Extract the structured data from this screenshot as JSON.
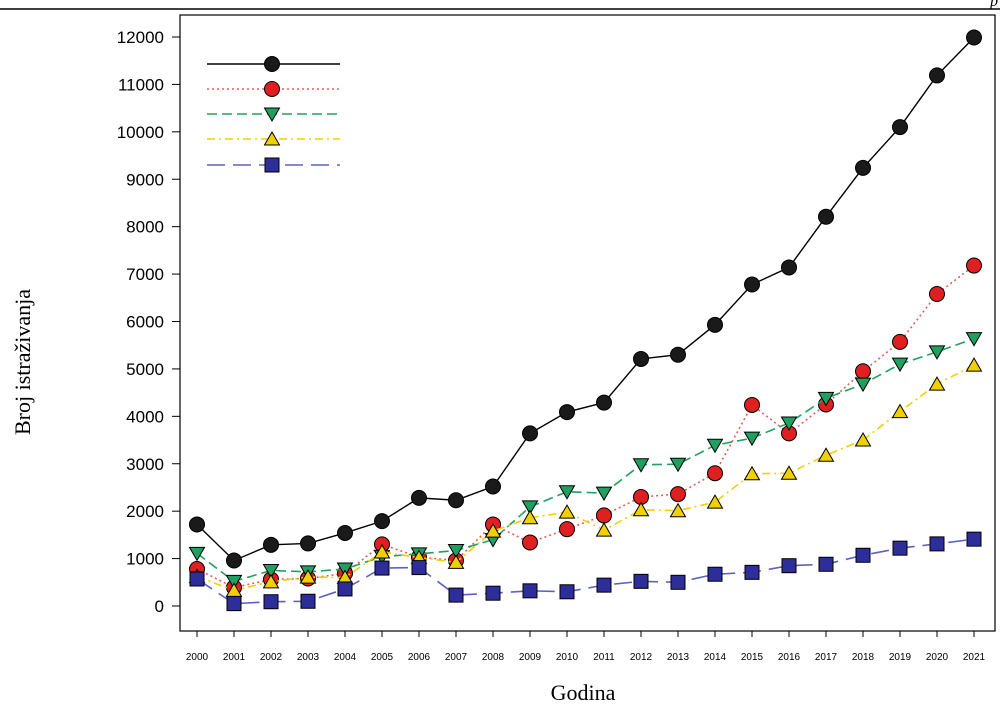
{
  "header_letter": "p",
  "chart_data": {
    "type": "line",
    "title": "",
    "xlabel": "Godina",
    "ylabel": "Broj istraživanja",
    "ylim": [
      0,
      12000
    ],
    "yticks": [
      0,
      1000,
      2000,
      3000,
      4000,
      5000,
      6000,
      7000,
      8000,
      9000,
      10000,
      11000,
      12000
    ],
    "categories": [
      "2000",
      "2001",
      "2002",
      "2003",
      "2004",
      "2005",
      "2006",
      "2007",
      "2008",
      "2009",
      "2010",
      "2011",
      "2012",
      "2013",
      "2014",
      "2015",
      "2016",
      "2017",
      "2018",
      "2019",
      "2020",
      "2021"
    ],
    "grid": false,
    "legend": "top-left",
    "series": [
      {
        "values": [
          1720,
          960,
          1290,
          1320,
          1540,
          1790,
          2280,
          2230,
          2520,
          3640,
          4090,
          4290,
          5210,
          5300,
          5930,
          6780,
          7140,
          8210,
          9240,
          10100,
          11190,
          11990
        ],
        "color": "#000000",
        "marker": "circle",
        "marker_fill": "#1a1a1a",
        "line_style": "solid"
      },
      {
        "values": [
          780,
          390,
          560,
          580,
          690,
          1300,
          1030,
          960,
          1720,
          1340,
          1620,
          1910,
          2300,
          2360,
          2800,
          4240,
          3640,
          4250,
          4950,
          5570,
          6580,
          7180
        ],
        "color": "#e06060",
        "marker": "circle",
        "marker_fill": "#e02020",
        "line_style": "dotted"
      },
      {
        "values": [
          1110,
          520,
          750,
          720,
          780,
          1040,
          1100,
          1170,
          1400,
          2090,
          2410,
          2380,
          2980,
          2990,
          3390,
          3540,
          3860,
          4380,
          4680,
          5100,
          5360,
          5640
        ],
        "color": "#20a060",
        "marker": "triangle-down",
        "marker_fill": "#20a060",
        "line_style": "dashed"
      },
      {
        "values": [
          620,
          330,
          510,
          610,
          600,
          1140,
          1020,
          920,
          1580,
          1860,
          1980,
          1600,
          2030,
          2010,
          2190,
          2790,
          2800,
          3180,
          3500,
          4100,
          4680,
          5080
        ],
        "color": "#f0d000",
        "marker": "triangle-up",
        "marker_fill": "#f0d000",
        "line_style": "dashdot"
      },
      {
        "values": [
          570,
          50,
          90,
          100,
          360,
          800,
          810,
          230,
          270,
          320,
          300,
          440,
          520,
          500,
          670,
          710,
          850,
          880,
          1070,
          1220,
          1310,
          1410
        ],
        "color": "#6060c0",
        "marker": "square",
        "marker_fill": "#2e2e9a",
        "line_style": "longdash"
      }
    ]
  }
}
